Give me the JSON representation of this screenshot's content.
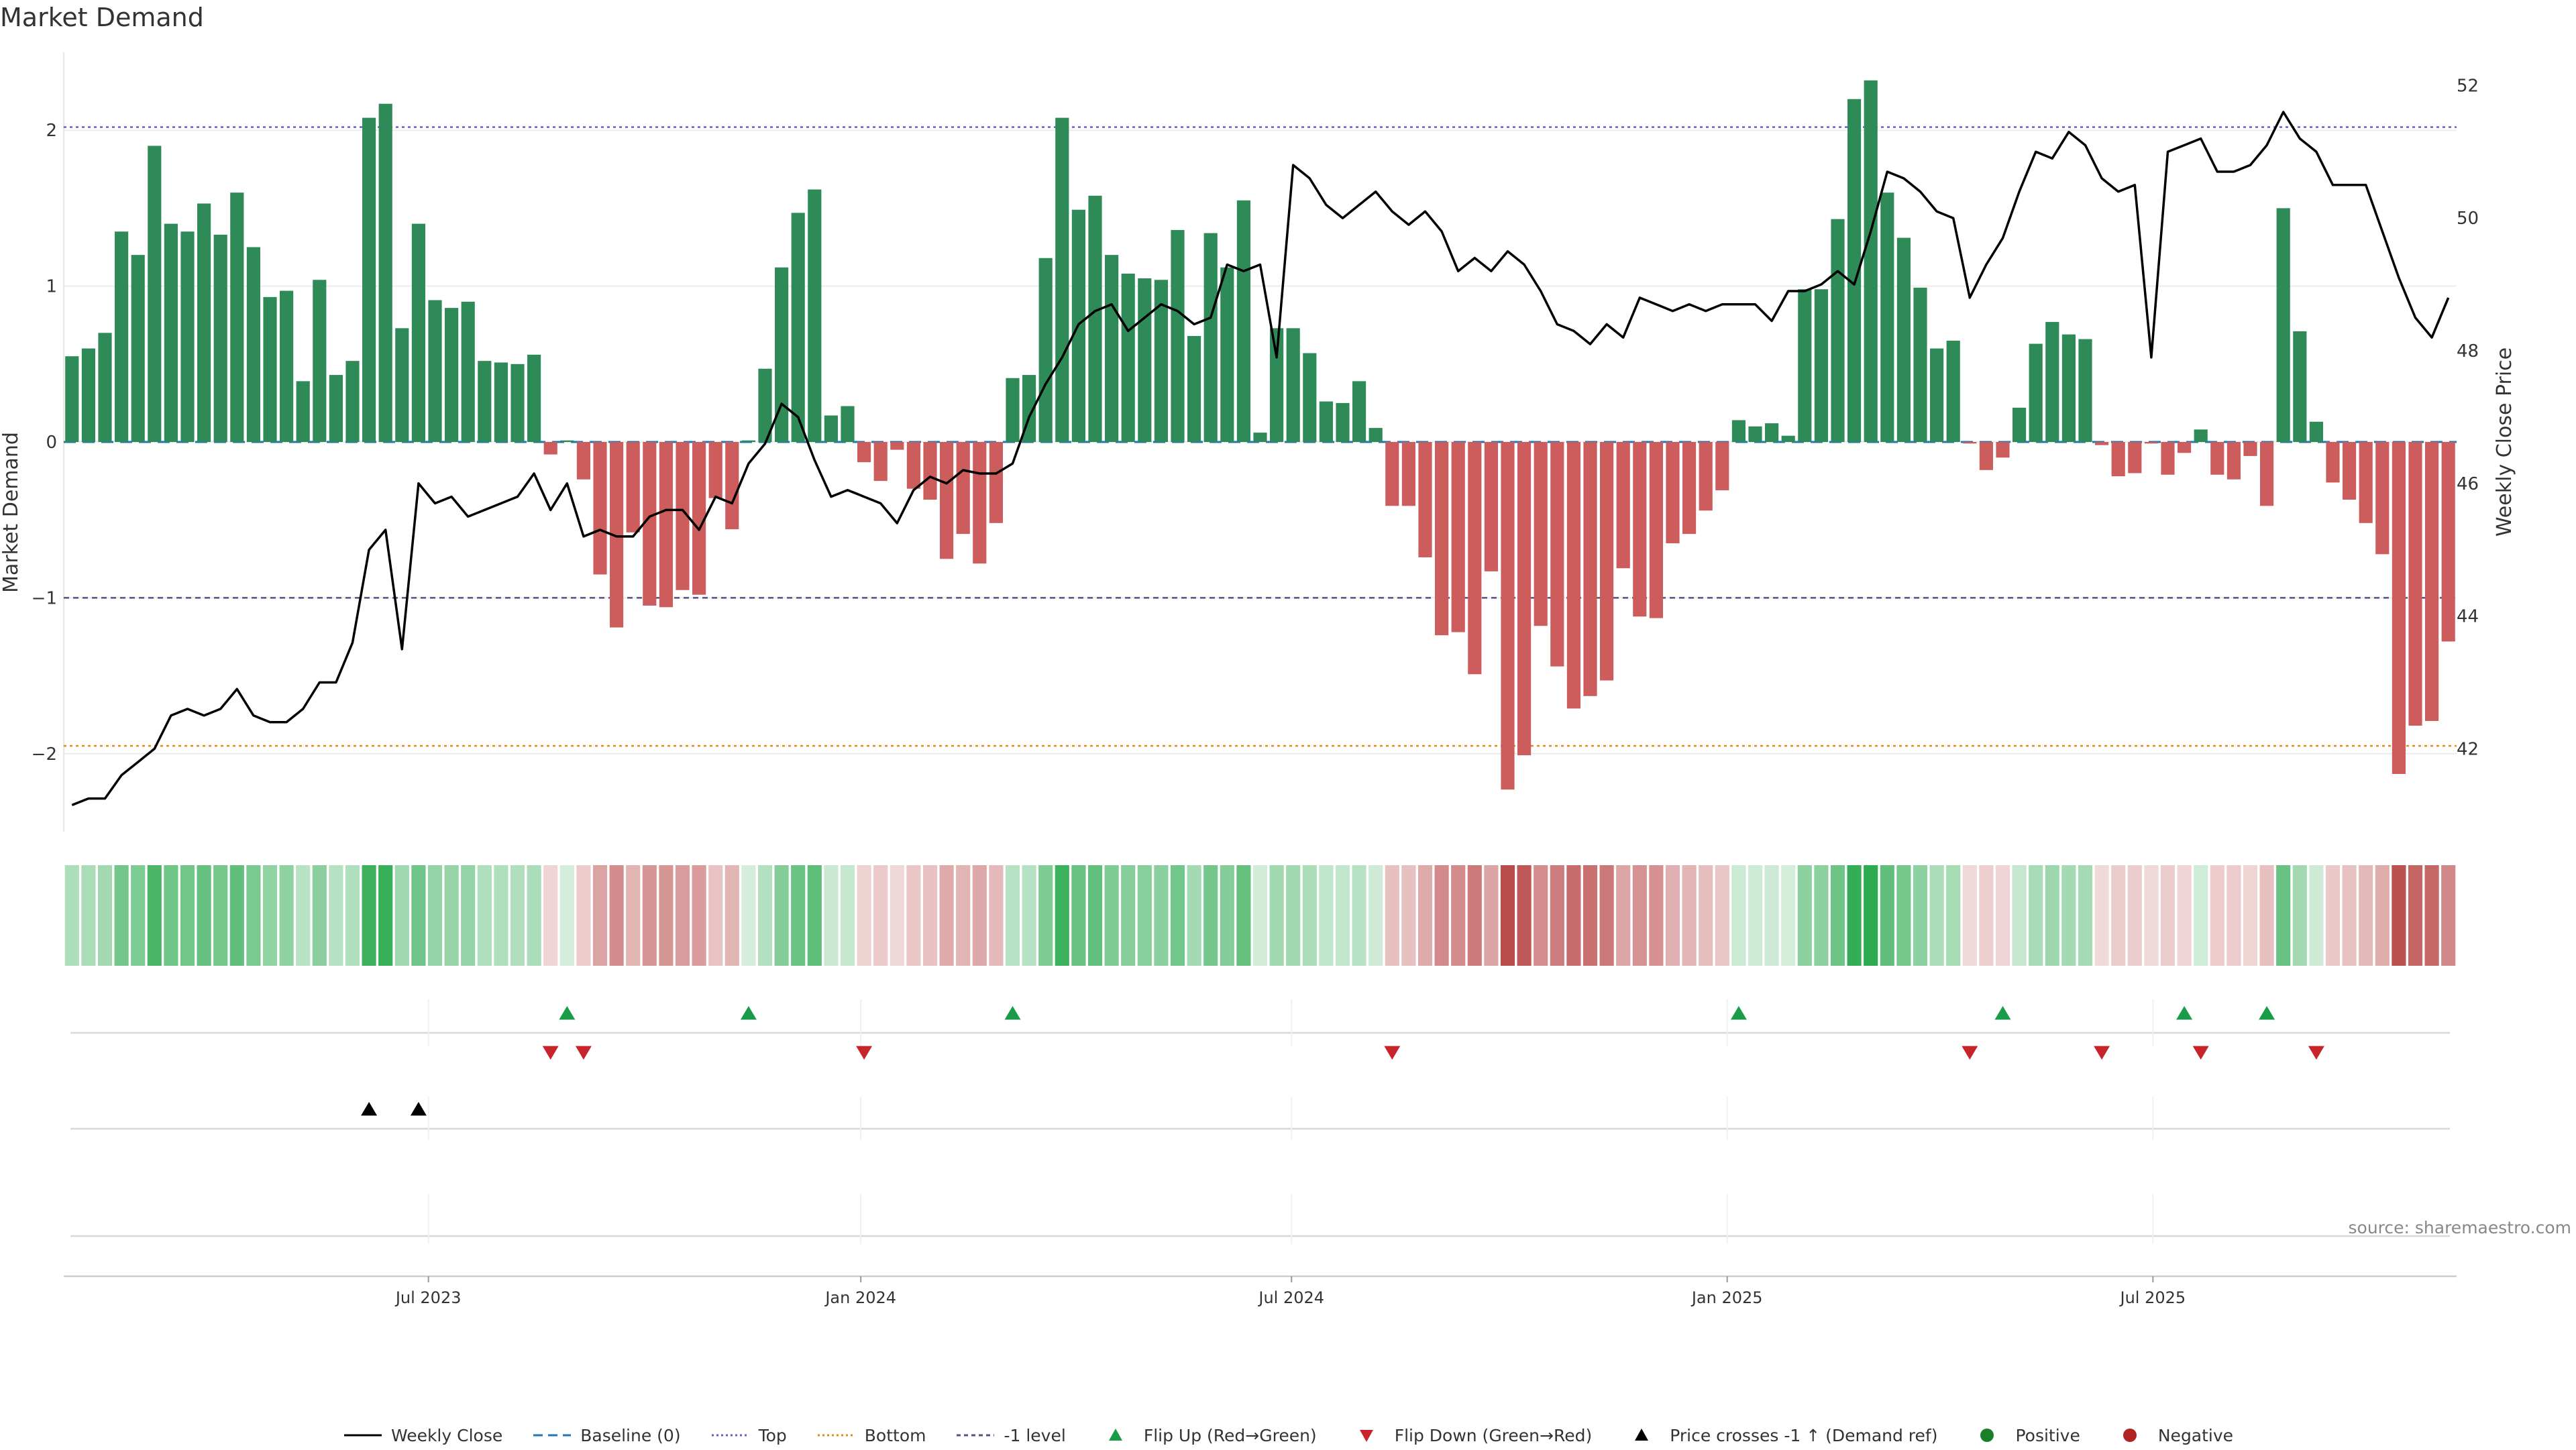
{
  "title": "Market Demand",
  "source": "source: sharemaestro.com",
  "colors": {
    "positive": "#2e8b57",
    "negative": "#cd5c5c",
    "price_line": "#000000",
    "top_line": "#6a5acd",
    "bottom_line": "#e08c1a",
    "minus1_line": "#5a4f8a",
    "baseline": "#1f77b4",
    "flip_up": "#1a9b48",
    "flip_down": "#c8242b",
    "price_cross": "#000000",
    "positive_dot": "#1a7f2a",
    "negative_dot": "#b22222"
  },
  "legend": [
    {
      "label": "Weekly Close",
      "symbol": "line-solid-black"
    },
    {
      "label": "Baseline (0)",
      "symbol": "line-dashed-blue"
    },
    {
      "label": "Top",
      "symbol": "line-dotted-purple"
    },
    {
      "label": "Bottom",
      "symbol": "line-dotted-orange"
    },
    {
      "label": "-1 level",
      "symbol": "line-dotted-gray"
    },
    {
      "label": "Flip Up (Red→Green)",
      "symbol": "triangle-up-green"
    },
    {
      "label": "Flip Down (Green→Red)",
      "symbol": "triangle-down-red"
    },
    {
      "label": "Price crosses -1 ↑ (Demand ref)",
      "symbol": "triangle-up-black"
    },
    {
      "label": "Positive",
      "symbol": "circle-green"
    },
    {
      "label": "Negative",
      "symbol": "circle-red"
    }
  ],
  "chart_data": {
    "type": "bar",
    "title": "Market Demand",
    "ylabel": "Market Demand",
    "y2label": "Weekly Close Price",
    "ylim": [
      -2.5,
      2.5
    ],
    "y2lim": [
      40.75,
      52.5
    ],
    "yticks": [
      -2,
      -1,
      0,
      1,
      2
    ],
    "y2ticks": [
      42,
      44,
      46,
      48,
      50,
      52
    ],
    "xtick_labels": [
      "Jul 2023",
      "Jan 2024",
      "Jul 2024",
      "Jan 2025",
      "Jul 2025"
    ],
    "xtick_index": [
      21.6,
      47.8,
      73.9,
      100.3,
      126.1
    ],
    "reference_lines": {
      "baseline": 0,
      "top": 2.02,
      "bottom": -1.95,
      "minus1": -1.0
    },
    "series": [
      {
        "name": "Market Demand",
        "values": [
          0.55,
          0.6,
          0.7,
          1.35,
          1.2,
          1.9,
          1.4,
          1.35,
          1.53,
          1.33,
          1.6,
          1.25,
          0.93,
          0.97,
          0.39,
          1.04,
          0.43,
          0.52,
          2.08,
          2.17,
          0.73,
          1.4,
          0.91,
          0.86,
          0.9,
          0.52,
          0.51,
          0.5,
          0.56,
          -0.08,
          0.01,
          -0.24,
          -0.85,
          -1.19,
          -0.58,
          -1.05,
          -1.06,
          -0.95,
          -0.98,
          -0.36,
          -0.56,
          0.01,
          0.47,
          1.12,
          1.47,
          1.62,
          0.17,
          0.23,
          -0.13,
          -0.25,
          -0.05,
          -0.3,
          -0.37,
          -0.75,
          -0.59,
          -0.78,
          -0.52,
          0.41,
          0.43,
          1.18,
          2.08,
          1.49,
          1.58,
          1.2,
          1.08,
          1.05,
          1.04,
          1.36,
          0.68,
          1.34,
          1.12,
          1.55,
          0.06,
          0.73,
          0.73,
          0.57,
          0.26,
          0.25,
          0.39,
          0.09,
          -0.41,
          -0.41,
          -0.74,
          -1.24,
          -1.22,
          -1.49,
          -0.83,
          -2.23,
          -2.01,
          -1.18,
          -1.44,
          -1.71,
          -1.63,
          -1.53,
          -0.81,
          -1.12,
          -1.13,
          -0.65,
          -0.59,
          -0.44,
          -0.31,
          0.14,
          0.1,
          0.12,
          0.04,
          0.98,
          0.98,
          1.43,
          2.2,
          2.32,
          1.6,
          1.31,
          0.99,
          0.6,
          0.65,
          -0.01,
          -0.18,
          -0.1,
          0.22,
          0.63,
          0.77,
          0.69,
          0.66,
          -0.02,
          -0.22,
          -0.2,
          -0.01,
          -0.21,
          -0.07,
          0.08,
          -0.21,
          -0.24,
          -0.09,
          -0.41,
          1.5,
          0.71,
          0.13,
          -0.26,
          -0.37,
          -0.52,
          -0.72,
          -2.13,
          -1.82,
          -1.79,
          -1.28
        ]
      },
      {
        "name": "Weekly Close",
        "axis": "right",
        "values": [
          41.15,
          41.25,
          41.25,
          41.6,
          41.8,
          42.0,
          42.5,
          42.6,
          42.5,
          42.6,
          42.9,
          42.5,
          42.4,
          42.4,
          42.6,
          43.0,
          43.0,
          43.6,
          45.0,
          45.3,
          43.5,
          46.0,
          45.7,
          45.8,
          45.5,
          45.6,
          45.7,
          45.8,
          46.15,
          45.6,
          46.0,
          45.2,
          45.3,
          45.2,
          45.2,
          45.5,
          45.6,
          45.6,
          45.3,
          45.8,
          45.7,
          46.3,
          46.6,
          47.2,
          47.0,
          46.35,
          45.8,
          45.9,
          45.8,
          45.7,
          45.4,
          45.9,
          46.1,
          46.0,
          46.2,
          46.15,
          46.15,
          46.3,
          47.0,
          47.5,
          47.9,
          48.4,
          48.6,
          48.7,
          48.3,
          48.5,
          48.7,
          48.6,
          48.4,
          48.5,
          49.3,
          49.2,
          49.3,
          47.9,
          50.8,
          50.6,
          50.2,
          50.0,
          50.2,
          50.4,
          50.1,
          49.9,
          50.1,
          49.8,
          49.2,
          49.4,
          49.2,
          49.5,
          49.3,
          48.9,
          48.4,
          48.3,
          48.1,
          48.4,
          48.2,
          48.8,
          48.7,
          48.6,
          48.7,
          48.6,
          48.7,
          48.7,
          48.7,
          48.45,
          48.9,
          48.9,
          49.0,
          49.2,
          49.0,
          49.8,
          50.7,
          50.6,
          50.4,
          50.1,
          50.0,
          48.8,
          49.3,
          49.7,
          50.4,
          51.0,
          50.9,
          51.3,
          51.1,
          50.6,
          50.4,
          50.5,
          47.9,
          51.0,
          51.1,
          51.2,
          50.7,
          50.7,
          50.8,
          51.1,
          51.6,
          51.2,
          51.0,
          50.5,
          50.5,
          50.5,
          49.8,
          49.1,
          48.5,
          48.2,
          48.8
        ]
      }
    ],
    "intensity_strip": "color per week mirrors Market Demand sign and magnitude",
    "event_rows": [
      {
        "name": "Flip Up (Red→Green)",
        "indices": [
          30,
          41,
          57,
          101,
          117,
          128,
          133
        ]
      },
      {
        "name": "Flip Down (Green→Red)",
        "indices": [
          29,
          31,
          48,
          80,
          115,
          123,
          129,
          136
        ]
      },
      {
        "name": "Price crosses -1 ↑ (Demand ref)",
        "indices": [
          18,
          21
        ]
      }
    ]
  }
}
